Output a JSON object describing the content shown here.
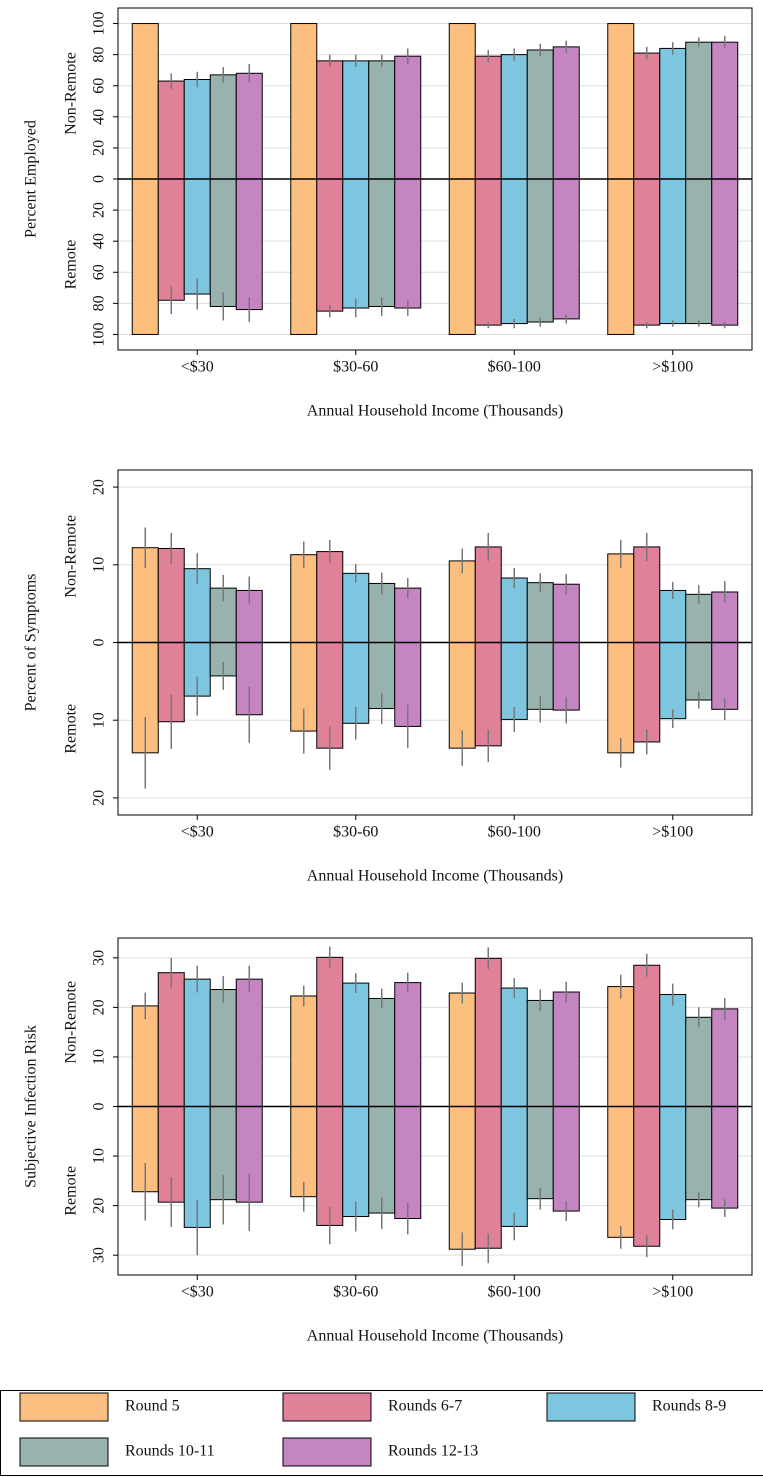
{
  "chart_data": [
    {
      "type": "bar",
      "ylabel": "Percent Employed",
      "upper_label": "Non-Remote",
      "lower_label": "Remote",
      "xlabel": "Annual Household Income (Thousands)",
      "categories": [
        "<$30",
        "$30-60",
        "$60-100",
        ">$100"
      ],
      "ylim": [
        -110,
        110
      ],
      "yticks": [
        {
          "value": -100,
          "label": "100"
        },
        {
          "value": -80,
          "label": "80"
        },
        {
          "value": -60,
          "label": "60"
        },
        {
          "value": -40,
          "label": "40"
        },
        {
          "value": -20,
          "label": "20"
        },
        0,
        20,
        40,
        60,
        80,
        100
      ],
      "grid": true,
      "series": [
        {
          "name": "Round 5",
          "color": "#fdbf80",
          "values": [
            100,
            100,
            100,
            100
          ],
          "errors": [
            0,
            0,
            0,
            0
          ],
          "remote_values": [
            -100,
            -100,
            -100,
            -100
          ],
          "remote_errors": [
            0,
            0,
            0,
            0
          ]
        },
        {
          "name": "Rounds 6-7",
          "color": "#df8199",
          "values": [
            63,
            76,
            79,
            81
          ],
          "errors": [
            5,
            4,
            4,
            4
          ],
          "remote_values": [
            -78,
            -85,
            -94,
            -94
          ],
          "remote_errors": [
            9,
            4,
            2,
            2
          ]
        },
        {
          "name": "Rounds 8-9",
          "color": "#7ec5df",
          "values": [
            64,
            76,
            80,
            84
          ],
          "errors": [
            5,
            4,
            4,
            4
          ],
          "remote_values": [
            -74,
            -83,
            -93,
            -93
          ],
          "remote_errors": [
            10,
            6,
            3,
            2
          ]
        },
        {
          "name": "Rounds 10-11",
          "color": "#98b3ad",
          "values": [
            67,
            76,
            83,
            88
          ],
          "errors": [
            5,
            4,
            4,
            3
          ],
          "remote_values": [
            -82,
            -82,
            -92,
            -93
          ],
          "remote_errors": [
            9,
            6,
            3,
            2
          ]
        },
        {
          "name": "Rounds 12-13",
          "color": "#c585c3",
          "values": [
            68,
            79,
            85,
            88
          ],
          "errors": [
            6,
            5,
            4,
            4
          ],
          "remote_values": [
            -84,
            -83,
            -90,
            -94
          ],
          "remote_errors": [
            8,
            5,
            3,
            2
          ]
        }
      ]
    },
    {
      "type": "bar",
      "ylabel": "Percent of Symptoms",
      "upper_label": "Non-Remote",
      "lower_label": "Remote",
      "xlabel": "Annual Household Income (Thousands)",
      "categories": [
        "<$30",
        "$30-60",
        "$60-100",
        ">$100"
      ],
      "ylim": [
        -22.2,
        22.2
      ],
      "yticks": [
        {
          "value": -20,
          "label": "20"
        },
        {
          "value": -10,
          "label": "10"
        },
        0,
        10,
        20
      ],
      "grid": true,
      "series": [
        {
          "values": [
            12.2,
            11.3,
            10.5,
            11.4
          ],
          "errors": [
            2.6,
            1.7,
            1.6,
            1.8
          ],
          "remote_values": [
            -14.2,
            -11.4,
            -13.6,
            -14.2
          ],
          "remote_errors": [
            4.6,
            2.9,
            2.3,
            1.9
          ]
        },
        {
          "values": [
            12.1,
            11.7,
            12.3,
            12.3
          ],
          "errors": [
            2,
            1.5,
            1.8,
            1.8
          ],
          "remote_values": [
            -10.2,
            -13.6,
            -13.3,
            -12.8
          ],
          "remote_errors": [
            3.5,
            2.8,
            2.1,
            1.6
          ]
        },
        {
          "values": [
            9.5,
            8.9,
            8.3,
            6.7
          ],
          "errors": [
            2,
            1.2,
            1.3,
            1.1
          ],
          "remote_values": [
            -6.9,
            -10.4,
            -9.9,
            -9.8
          ],
          "remote_errors": [
            2.5,
            2.1,
            1.6,
            1.2
          ]
        },
        {
          "values": [
            7,
            7.6,
            7.7,
            6.2
          ],
          "errors": [
            1.7,
            1.4,
            1.2,
            1.2
          ],
          "remote_values": [
            -4.3,
            -8.5,
            -8.6,
            -7.4
          ],
          "remote_errors": [
            1.8,
            2,
            1.7,
            1.1
          ]
        },
        {
          "values": [
            6.7,
            7,
            7.5,
            6.5
          ],
          "errors": [
            1.8,
            1.3,
            1.3,
            1.4
          ],
          "remote_values": [
            -9.3,
            -10.8,
            -8.7,
            -8.6
          ],
          "remote_errors": [
            3.6,
            2.8,
            1.7,
            1.4
          ]
        }
      ]
    },
    {
      "type": "bar",
      "ylabel": "Subjective Infection Risk",
      "upper_label": "Non-Remote",
      "lower_label": "Remote",
      "xlabel": "Annual Household Income (Thousands)",
      "categories": [
        "<$30",
        "$30-60",
        "$60-100",
        ">$100"
      ],
      "ylim": [
        -34,
        34
      ],
      "yticks": [
        {
          "value": -30,
          "label": "30"
        },
        {
          "value": -20,
          "label": "20"
        },
        {
          "value": -10,
          "label": "10"
        },
        0,
        10,
        20,
        30
      ],
      "grid": true,
      "series": [
        {
          "values": [
            20.3,
            22.3,
            22.9,
            24.2
          ],
          "errors": [
            2.7,
            2.1,
            2.1,
            2.4
          ],
          "remote_values": [
            -17.2,
            -18.2,
            -28.8,
            -26.4
          ],
          "remote_errors": [
            5.8,
            3,
            3.4,
            2.3
          ]
        },
        {
          "values": [
            27,
            30.1,
            29.9,
            28.5
          ],
          "errors": [
            3,
            2.2,
            2.2,
            2.3
          ],
          "remote_values": [
            -19.3,
            -24,
            -28.6,
            -28.2
          ],
          "remote_errors": [
            5,
            3.8,
            3,
            2.2
          ]
        },
        {
          "values": [
            25.7,
            24.9,
            23.9,
            22.6
          ],
          "errors": [
            2.7,
            2,
            2,
            2.2
          ],
          "remote_values": [
            -24.4,
            -22.2,
            -24.2,
            -22.8
          ],
          "remote_errors": [
            5.6,
            3,
            2.8,
            2
          ]
        },
        {
          "values": [
            23.6,
            21.8,
            21.4,
            18
          ],
          "errors": [
            2.7,
            2,
            2.2,
            2
          ],
          "remote_values": [
            -18.8,
            -21.5,
            -18.6,
            -18.8
          ],
          "remote_errors": [
            5,
            3.2,
            2.2,
            1.5
          ]
        },
        {
          "values": [
            25.7,
            25,
            23.1,
            19.7
          ],
          "errors": [
            2.7,
            2,
            2.1,
            2.2
          ],
          "remote_values": [
            -19.3,
            -22.6,
            -21.1,
            -20.5
          ],
          "remote_errors": [
            5.8,
            3.2,
            2,
            1.8
          ]
        }
      ]
    }
  ]
}
